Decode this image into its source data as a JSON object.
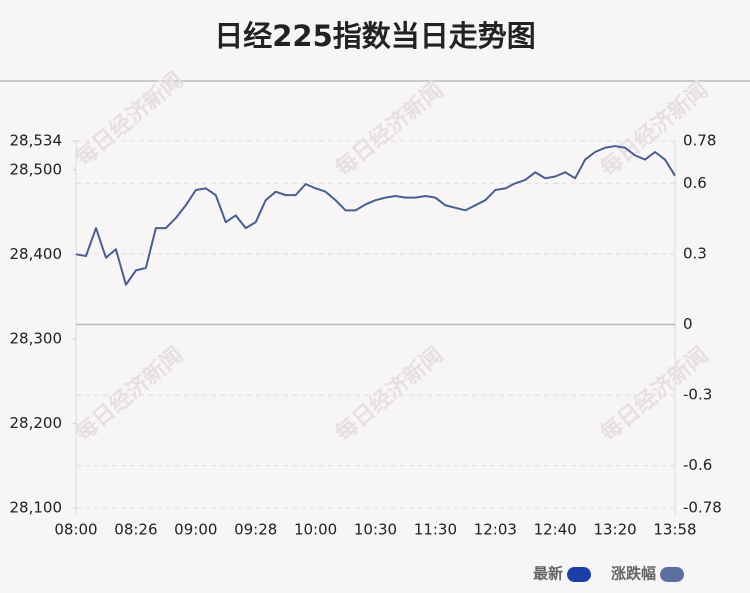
{
  "chart_data": {
    "type": "line",
    "title": "日经225指数当日走势图",
    "watermark": "每日经济新闻",
    "categories": [
      "08:00",
      null,
      null,
      null,
      null,
      null,
      "08:26",
      null,
      null,
      null,
      null,
      null,
      "09:00",
      null,
      null,
      null,
      null,
      null,
      "09:28",
      null,
      null,
      null,
      null,
      null,
      "10:00",
      null,
      null,
      null,
      null,
      null,
      "10:30",
      null,
      null,
      null,
      null,
      null,
      "11:30",
      null,
      null,
      null,
      null,
      null,
      "12:03",
      null,
      null,
      null,
      null,
      null,
      "12:40",
      null,
      null,
      null,
      null,
      null,
      "13:20",
      null,
      null,
      null,
      null,
      null,
      "13:58"
    ],
    "series": [
      {
        "name": "最新",
        "color": "#4a5f8f",
        "values": [
          28400,
          28398,
          28431,
          28396,
          28406,
          28364,
          28381,
          28384,
          28431,
          28431,
          28443,
          28458,
          28476,
          28478,
          28470,
          28438,
          28446,
          28431,
          28438,
          28464,
          28474,
          28470,
          28470,
          28483,
          28478,
          28474,
          28464,
          28452,
          28452,
          28459,
          28464,
          28467,
          28469,
          28467,
          28467,
          28469,
          28467,
          28458,
          28455,
          28452,
          28458,
          28464,
          28476,
          28478,
          28484,
          28488,
          28497,
          28490,
          28492,
          28497,
          28490,
          28512,
          28521,
          28526,
          28528,
          28526,
          28517,
          28512,
          28521,
          28512,
          28493
        ]
      }
    ],
    "legend": [
      {
        "name": "最新",
        "color": "#1a3fa8"
      },
      {
        "name": "涨跌幅",
        "color": "#5b6f9e"
      }
    ],
    "ylim": [
      28100,
      28534
    ],
    "yticks": [
      {
        "value": 28534,
        "label": "28,534"
      },
      {
        "value": 28500,
        "label": "28,500"
      },
      {
        "value": 28400,
        "label": "28,400"
      },
      {
        "value": 28300,
        "label": "28,300"
      },
      {
        "value": 28200,
        "label": "28,200"
      },
      {
        "value": 28100,
        "label": "28,100"
      }
    ],
    "y2lim": [
      -0.78,
      0.78
    ],
    "y2ticks": [
      0.78,
      0.6,
      0.3,
      0,
      -0.3,
      -0.6,
      -0.78
    ],
    "grid": true
  }
}
